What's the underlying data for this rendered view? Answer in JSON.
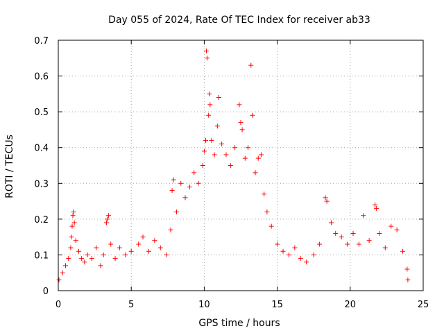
{
  "chart_data": {
    "type": "scatter",
    "title": "Day 055 of 2024, Rate Of TEC Index for receiver ab33",
    "xlabel": "GPS time / hours",
    "ylabel": "ROTI / TECUs",
    "xlim": [
      0,
      25
    ],
    "ylim": [
      0,
      0.7
    ],
    "x_ticks": [
      "0",
      "5",
      "10",
      "15",
      "20",
      "25"
    ],
    "y_ticks": [
      "0",
      "0.1",
      "0.2",
      "0.3",
      "0.4",
      "0.5",
      "0.6",
      "0.7"
    ],
    "grid": true,
    "marker": "plus",
    "marker_color": "#ff0000",
    "series": [
      {
        "points": [
          [
            0.05,
            0.03
          ],
          [
            0.3,
            0.05
          ],
          [
            0.5,
            0.07
          ],
          [
            0.7,
            0.09
          ],
          [
            0.85,
            0.12
          ],
          [
            0.9,
            0.15
          ],
          [
            0.95,
            0.18
          ],
          [
            1.0,
            0.21
          ],
          [
            1.05,
            0.22
          ],
          [
            1.1,
            0.19
          ],
          [
            1.2,
            0.14
          ],
          [
            1.4,
            0.11
          ],
          [
            1.6,
            0.09
          ],
          [
            1.8,
            0.08
          ],
          [
            2.0,
            0.1
          ],
          [
            2.3,
            0.09
          ],
          [
            2.6,
            0.12
          ],
          [
            2.9,
            0.07
          ],
          [
            3.1,
            0.1
          ],
          [
            3.3,
            0.19
          ],
          [
            3.35,
            0.2
          ],
          [
            3.45,
            0.21
          ],
          [
            3.6,
            0.13
          ],
          [
            3.9,
            0.09
          ],
          [
            4.2,
            0.12
          ],
          [
            4.6,
            0.1
          ],
          [
            5.0,
            0.11
          ],
          [
            5.5,
            0.13
          ],
          [
            5.8,
            0.15
          ],
          [
            6.2,
            0.11
          ],
          [
            6.6,
            0.14
          ],
          [
            7.0,
            0.12
          ],
          [
            7.4,
            0.1
          ],
          [
            7.7,
            0.17
          ],
          [
            7.8,
            0.28
          ],
          [
            7.9,
            0.31
          ],
          [
            8.1,
            0.22
          ],
          [
            8.4,
            0.3
          ],
          [
            8.7,
            0.26
          ],
          [
            9.0,
            0.29
          ],
          [
            9.3,
            0.33
          ],
          [
            9.6,
            0.3
          ],
          [
            9.9,
            0.35
          ],
          [
            10.0,
            0.39
          ],
          [
            10.1,
            0.42
          ],
          [
            10.15,
            0.67
          ],
          [
            10.2,
            0.65
          ],
          [
            10.3,
            0.49
          ],
          [
            10.35,
            0.55
          ],
          [
            10.4,
            0.52
          ],
          [
            10.5,
            0.42
          ],
          [
            10.7,
            0.38
          ],
          [
            10.9,
            0.46
          ],
          [
            11.0,
            0.54
          ],
          [
            11.2,
            0.41
          ],
          [
            11.5,
            0.38
          ],
          [
            11.8,
            0.35
          ],
          [
            12.1,
            0.4
          ],
          [
            12.4,
            0.52
          ],
          [
            12.5,
            0.47
          ],
          [
            12.6,
            0.45
          ],
          [
            12.8,
            0.37
          ],
          [
            13.0,
            0.4
          ],
          [
            13.2,
            0.63
          ],
          [
            13.3,
            0.49
          ],
          [
            13.5,
            0.33
          ],
          [
            13.7,
            0.37
          ],
          [
            13.9,
            0.38
          ],
          [
            14.1,
            0.27
          ],
          [
            14.3,
            0.22
          ],
          [
            14.6,
            0.18
          ],
          [
            15.0,
            0.13
          ],
          [
            15.4,
            0.11
          ],
          [
            15.8,
            0.1
          ],
          [
            16.2,
            0.12
          ],
          [
            16.6,
            0.09
          ],
          [
            17.0,
            0.08
          ],
          [
            17.5,
            0.1
          ],
          [
            17.9,
            0.13
          ],
          [
            18.3,
            0.26
          ],
          [
            18.4,
            0.25
          ],
          [
            18.7,
            0.19
          ],
          [
            19.0,
            0.16
          ],
          [
            19.4,
            0.15
          ],
          [
            19.8,
            0.13
          ],
          [
            20.2,
            0.16
          ],
          [
            20.6,
            0.13
          ],
          [
            20.9,
            0.21
          ],
          [
            21.3,
            0.14
          ],
          [
            21.7,
            0.24
          ],
          [
            21.8,
            0.23
          ],
          [
            22.0,
            0.16
          ],
          [
            22.4,
            0.12
          ],
          [
            22.8,
            0.18
          ],
          [
            23.2,
            0.17
          ],
          [
            23.6,
            0.11
          ],
          [
            23.9,
            0.06
          ],
          [
            23.95,
            0.03
          ]
        ]
      }
    ]
  }
}
